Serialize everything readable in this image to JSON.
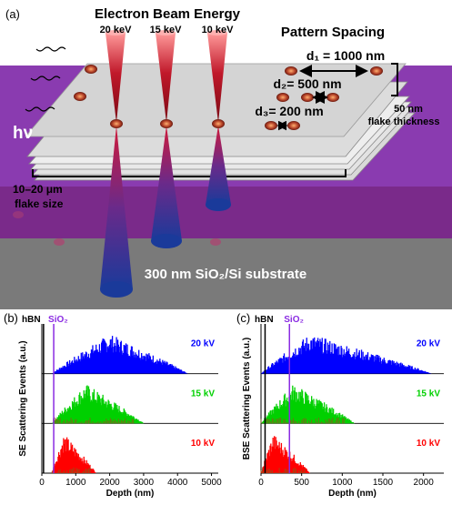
{
  "panel_a": {
    "label": "(a)",
    "heading": "Electron Beam Energy",
    "beams": [
      {
        "energy": "20 keV"
      },
      {
        "energy": "15 keV"
      },
      {
        "energy": "10 keV"
      }
    ],
    "pattern_heading": "Pattern Spacing",
    "spacings": [
      {
        "label": "d₁ = 1000 nm"
      },
      {
        "label": "d₂= 500 nm"
      },
      {
        "label": "d₃= 200 nm"
      }
    ],
    "thickness_value": "50 nm",
    "thickness_label": "flake thickness",
    "photon": "hν",
    "flake_size_value": "10–20 μm",
    "flake_size_label": "flake size",
    "substrate": "300 nm SiO₂/Si substrate",
    "colors": {
      "purple": "#8a3bb0",
      "substrate": "#7a7a7a",
      "beam": "#c0182a",
      "tail": "#1a3a9a"
    }
  },
  "chart_data": [
    {
      "panel": "(b)",
      "type": "histogram",
      "ylabel": "SE Scattering Events (a.u.)",
      "xlabel": "Depth (nm)",
      "xlim": [
        0,
        5200
      ],
      "xticks": [
        0,
        1000,
        2000,
        3000,
        4000,
        5000
      ],
      "markers": [
        {
          "label": "hBN",
          "x": 50
        },
        {
          "label": "SiO₂",
          "x": 350
        }
      ],
      "series": [
        {
          "name": "20 kV",
          "color": "#0000ff",
          "peak_depth": 2000,
          "range": [
            300,
            4300
          ]
        },
        {
          "name": "15 kV",
          "color": "#00d000",
          "peak_depth": 1300,
          "range": [
            300,
            3000
          ]
        },
        {
          "name": "10 kV",
          "color": "#ff0000",
          "peak_depth": 650,
          "range": [
            300,
            1600
          ]
        }
      ]
    },
    {
      "panel": "(c)",
      "type": "histogram",
      "ylabel": "BSE Scattering Events (a.u.)",
      "xlabel": "Depth (nm)",
      "xlim": [
        0,
        2250
      ],
      "xticks": [
        0,
        500,
        1000,
        1500,
        2000
      ],
      "markers": [
        {
          "label": "hBN",
          "x": 50
        },
        {
          "label": "SiO₂",
          "x": 350
        }
      ],
      "series": [
        {
          "name": "20 kV",
          "color": "#0000ff",
          "peak_depth": 600,
          "range": [
            0,
            2100
          ]
        },
        {
          "name": "15 kV",
          "color": "#00d000",
          "peak_depth": 400,
          "range": [
            0,
            1150
          ]
        },
        {
          "name": "10 kV",
          "color": "#ff0000",
          "peak_depth": 150,
          "range": [
            0,
            600
          ]
        }
      ]
    }
  ]
}
